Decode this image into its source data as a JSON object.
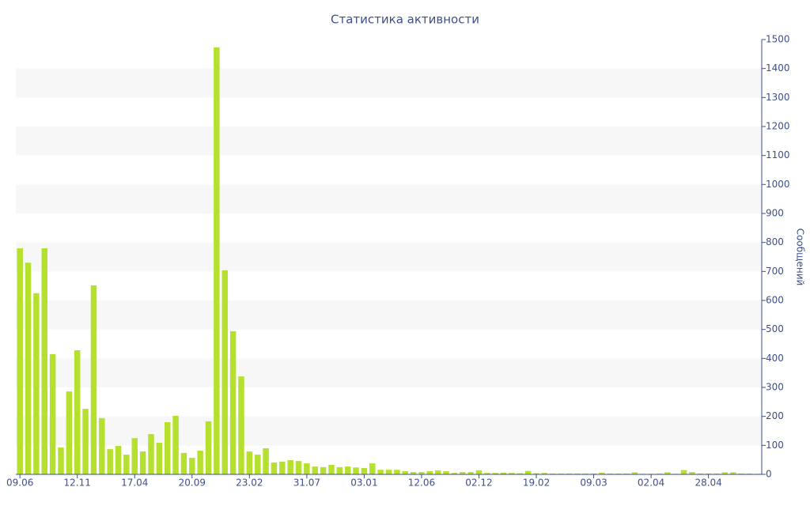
{
  "chart_data": {
    "type": "bar",
    "title": "Статистика активности",
    "y_axis_label": "Сообщений",
    "categories": [
      "09.06",
      null,
      null,
      null,
      null,
      null,
      null,
      "12.11",
      null,
      null,
      null,
      null,
      null,
      null,
      "17.04",
      null,
      null,
      null,
      null,
      null,
      null,
      "20.09",
      null,
      null,
      null,
      null,
      null,
      null,
      "23.02",
      null,
      null,
      null,
      null,
      null,
      null,
      "31.07",
      null,
      null,
      null,
      null,
      null,
      null,
      "03.01",
      null,
      null,
      null,
      null,
      null,
      null,
      "12.06",
      null,
      null,
      null,
      null,
      null,
      null,
      "02.12",
      null,
      null,
      null,
      null,
      null,
      null,
      "19.02",
      null,
      null,
      null,
      null,
      null,
      null,
      "09.03",
      null,
      null,
      null,
      null,
      null,
      null,
      "02.04",
      null,
      null,
      null,
      null,
      null,
      null,
      "28.04",
      null,
      null,
      null,
      null,
      null,
      null
    ],
    "values": [
      780,
      730,
      625,
      780,
      415,
      93,
      286,
      428,
      226,
      652,
      194,
      87,
      98,
      68,
      125,
      79,
      139,
      109,
      180,
      202,
      74,
      57,
      82,
      183,
      1473,
      704,
      494,
      338,
      79,
      68,
      90,
      41,
      44,
      49,
      46,
      38,
      27,
      25,
      33,
      25,
      27,
      24,
      22,
      38,
      16,
      16,
      16,
      11,
      8,
      8,
      11,
      14,
      11,
      5,
      8,
      8,
      14,
      5,
      5,
      6,
      5,
      4,
      12,
      4,
      5,
      3,
      3,
      3,
      3,
      3,
      3,
      6,
      3,
      3,
      3,
      7,
      2,
      2,
      3,
      7,
      2,
      15,
      8,
      3,
      3,
      3,
      7,
      7,
      3,
      3,
      2
    ],
    "color": "#b5e02e",
    "ylim": [
      0,
      1500
    ],
    "yticks": [
      0,
      100,
      200,
      300,
      400,
      500,
      600,
      700,
      800,
      900,
      1000,
      1100,
      1200,
      1300,
      1400,
      1500
    ],
    "grid": true,
    "y_axis_side": "right"
  }
}
